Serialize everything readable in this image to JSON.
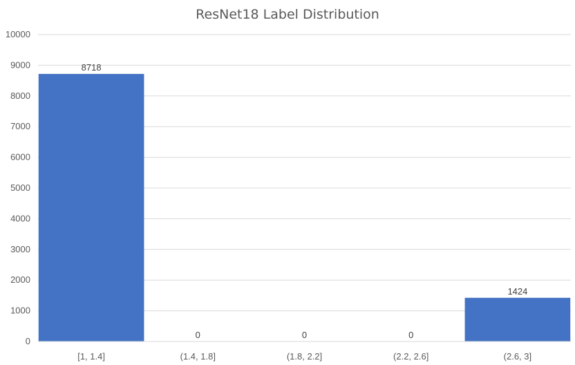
{
  "chart_data": {
    "type": "bar",
    "title": "ResNet18 Label Distribution",
    "categories": [
      "[1, 1.4]",
      "(1.4, 1.8]",
      "(1.8, 2.2]",
      "(2.2, 2.6]",
      "(2.6, 3]"
    ],
    "values": [
      8718,
      0,
      0,
      0,
      1424
    ],
    "data_labels": [
      "8718",
      "0",
      "0",
      "0",
      "1424"
    ],
    "xlabel": "",
    "ylabel": "",
    "ylim": [
      0,
      10000
    ],
    "yticks": [
      0,
      1000,
      2000,
      3000,
      4000,
      5000,
      6000,
      7000,
      8000,
      9000,
      10000
    ],
    "ytick_labels": [
      "0",
      "1000",
      "2000",
      "3000",
      "4000",
      "5000",
      "6000",
      "7000",
      "8000",
      "9000",
      "10000"
    ],
    "grid": true,
    "legend": "none",
    "bar_color": "#4472c4"
  }
}
